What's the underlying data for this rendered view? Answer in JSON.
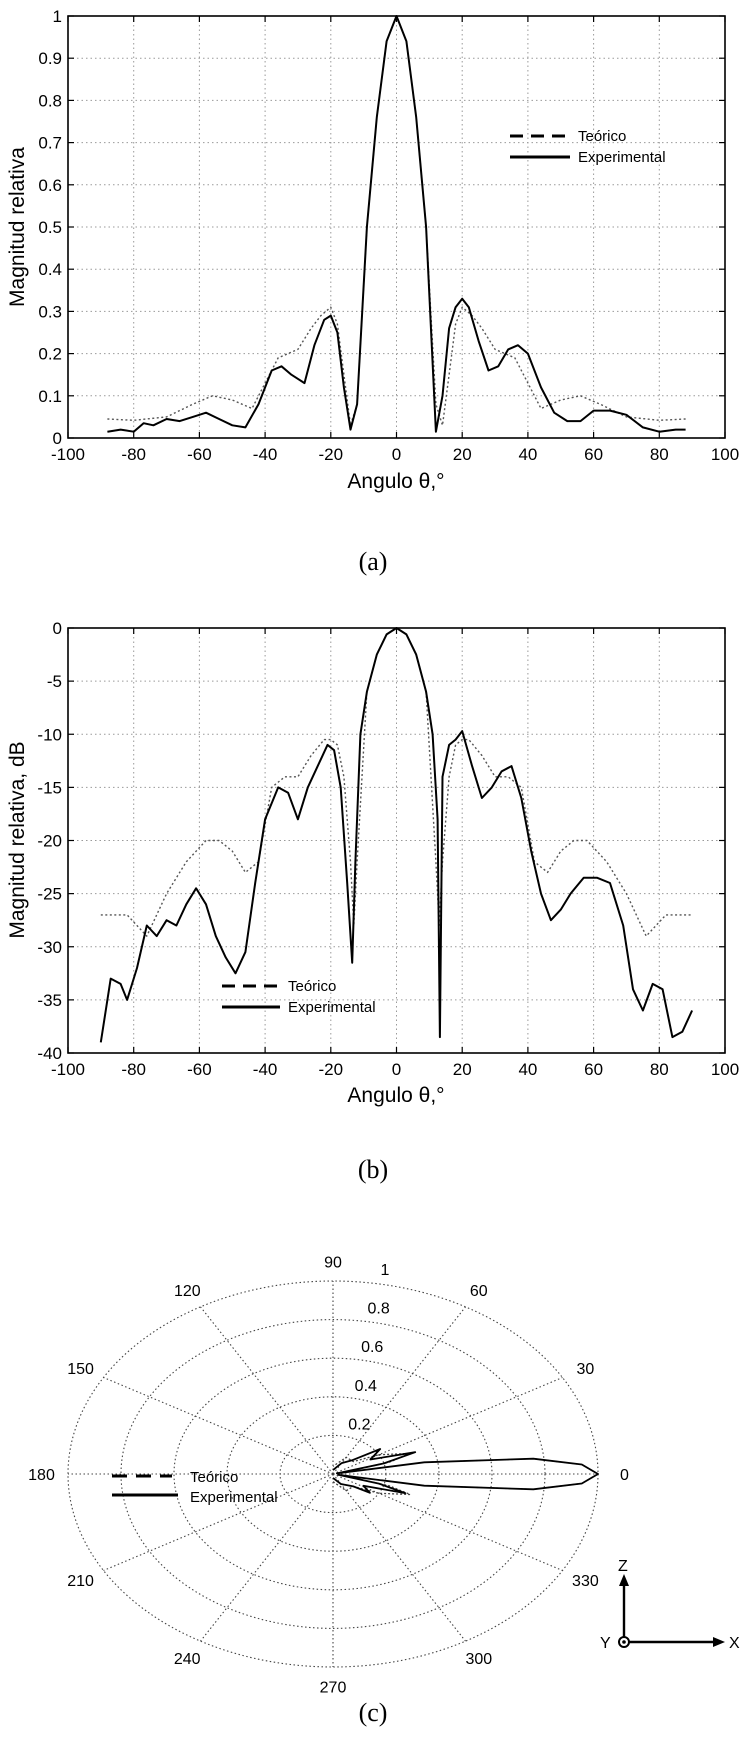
{
  "chart_data": [
    {
      "type": "line",
      "panel_label": "(a)",
      "xlabel": "Angulo θ,°",
      "ylabel": "Magnitud relativa",
      "xlim": [
        -100,
        100
      ],
      "ylim": [
        0,
        1
      ],
      "xticks": [
        "-100",
        "-80",
        "-60",
        "-40",
        "-20",
        "0",
        "20",
        "40",
        "60",
        "80",
        "100"
      ],
      "yticks": [
        "0",
        "0.1",
        "0.2",
        "0.3",
        "0.4",
        "0.5",
        "0.6",
        "0.7",
        "0.8",
        "0.9",
        "1"
      ],
      "grid": true,
      "legend": {
        "position": "top-right",
        "entries": [
          "Teórico",
          "Experimental"
        ]
      },
      "series": [
        {
          "name": "Teórico",
          "x": [
            -88,
            -80,
            -70,
            -62,
            -56,
            -50,
            -44,
            -40,
            -36,
            -33,
            -30,
            -26,
            -23,
            -20,
            -18,
            -16,
            -14,
            -12,
            -9,
            -6,
            -3,
            0,
            3,
            6,
            9,
            12,
            14,
            16,
            18,
            20,
            23,
            26,
            30,
            33,
            36,
            40,
            44,
            50,
            56,
            62,
            70,
            80,
            88
          ],
          "y": [
            0.045,
            0.042,
            0.05,
            0.08,
            0.1,
            0.09,
            0.07,
            0.13,
            0.19,
            0.2,
            0.21,
            0.26,
            0.29,
            0.31,
            0.27,
            0.15,
            0.03,
            0.08,
            0.5,
            0.76,
            0.94,
            1.0,
            0.94,
            0.76,
            0.5,
            0.08,
            0.03,
            0.15,
            0.27,
            0.31,
            0.29,
            0.26,
            0.21,
            0.2,
            0.19,
            0.13,
            0.07,
            0.09,
            0.1,
            0.08,
            0.05,
            0.042,
            0.045
          ]
        },
        {
          "name": "Experimental",
          "x": [
            -88,
            -84,
            -80,
            -77,
            -74,
            -70,
            -66,
            -62,
            -58,
            -54,
            -50,
            -46,
            -42,
            -38,
            -35,
            -32,
            -28,
            -25,
            -22,
            -20,
            -18,
            -16,
            -14,
            -12,
            -9,
            -6,
            -3,
            0,
            3,
            6,
            9,
            12,
            14,
            16,
            18,
            20,
            22,
            25,
            28,
            31,
            34,
            37,
            40,
            44,
            48,
            52,
            56,
            60,
            65,
            70,
            75,
            80,
            85,
            88
          ],
          "y": [
            0.015,
            0.02,
            0.015,
            0.035,
            0.03,
            0.045,
            0.04,
            0.05,
            0.06,
            0.045,
            0.03,
            0.025,
            0.08,
            0.16,
            0.17,
            0.15,
            0.13,
            0.22,
            0.28,
            0.29,
            0.25,
            0.12,
            0.02,
            0.08,
            0.5,
            0.76,
            0.94,
            1.0,
            0.94,
            0.76,
            0.5,
            0.015,
            0.1,
            0.26,
            0.31,
            0.33,
            0.31,
            0.23,
            0.16,
            0.17,
            0.21,
            0.22,
            0.2,
            0.12,
            0.06,
            0.04,
            0.04,
            0.065,
            0.065,
            0.055,
            0.025,
            0.015,
            0.02,
            0.02
          ]
        }
      ]
    },
    {
      "type": "line",
      "panel_label": "(b)",
      "xlabel": "Angulo θ,°",
      "ylabel": "Magnitud relativa, dB",
      "xlim": [
        -100,
        100
      ],
      "ylim": [
        -40,
        0
      ],
      "xticks": [
        "-100",
        "-80",
        "-60",
        "-40",
        "-20",
        "0",
        "20",
        "40",
        "60",
        "80",
        "100"
      ],
      "yticks": [
        "-40",
        "-35",
        "-30",
        "-25",
        "-20",
        "-15",
        "-10",
        "-5",
        "0"
      ],
      "grid": true,
      "legend": {
        "position": "bottom-left",
        "entries": [
          "Teórico",
          "Experimental"
        ]
      },
      "series": [
        {
          "name": "Teórico",
          "x": [
            -90,
            -82,
            -76,
            -70,
            -64,
            -58,
            -54,
            -50,
            -46,
            -42,
            -38,
            -34,
            -30,
            -26,
            -22,
            -20,
            -18,
            -16,
            -14,
            -13,
            -12,
            -9,
            -6,
            -3,
            0,
            3,
            6,
            9,
            12,
            13,
            14,
            16,
            18,
            20,
            22,
            26,
            30,
            34,
            38,
            42,
            46,
            50,
            54,
            58,
            64,
            70,
            76,
            82,
            90
          ],
          "y": [
            -27,
            -27,
            -29,
            -25,
            -22,
            -20,
            -20,
            -21,
            -23,
            -22,
            -15,
            -14,
            -14,
            -12,
            -10.5,
            -10.5,
            -11,
            -14,
            -22,
            -28,
            -22,
            -6,
            -2.5,
            -0.6,
            0,
            -0.6,
            -2.5,
            -6,
            -22,
            -28,
            -22,
            -14,
            -11,
            -10.5,
            -10.5,
            -12,
            -14,
            -14,
            -15,
            -22,
            -23,
            -21,
            -20,
            -20,
            -22,
            -25,
            -29,
            -27,
            -27
          ]
        },
        {
          "name": "Experimental",
          "x": [
            -90,
            -87,
            -84,
            -82,
            -79,
            -76,
            -73,
            -70,
            -67,
            -64,
            -61,
            -58,
            -55,
            -52,
            -49,
            -46,
            -43,
            -40,
            -36,
            -33,
            -30,
            -27,
            -24,
            -21,
            -19,
            -17,
            -15,
            -13.5,
            -12.5,
            -11,
            -9,
            -6,
            -3,
            0,
            3,
            6,
            9,
            11,
            12.5,
            13.2,
            14,
            16,
            18,
            20,
            23,
            26,
            29,
            32,
            35,
            38,
            41,
            44,
            47,
            50,
            53,
            57,
            61,
            65,
            69,
            72,
            75,
            78,
            81,
            84,
            87,
            90
          ],
          "y": [
            -39,
            -33,
            -33.5,
            -35,
            -32,
            -28,
            -29,
            -27.5,
            -28,
            -26,
            -24.5,
            -26,
            -29,
            -31,
            -32.5,
            -30.5,
            -24,
            -18,
            -15,
            -15.5,
            -18,
            -15,
            -13,
            -11,
            -11.5,
            -15,
            -24,
            -31.5,
            -22,
            -10,
            -6,
            -2.5,
            -0.6,
            0,
            -0.6,
            -2.5,
            -6,
            -10,
            -18,
            -38.5,
            -14,
            -11,
            -10.5,
            -9.7,
            -13,
            -16,
            -15,
            -13.5,
            -13,
            -16,
            -21,
            -25,
            -27.5,
            -26.5,
            -25,
            -23.5,
            -23.5,
            -24,
            -28,
            -34,
            -36,
            -33.5,
            -34,
            -38.5,
            -38,
            -36
          ]
        }
      ]
    },
    {
      "type": "polar",
      "panel_label": "(c)",
      "radial_ticks": [
        "0.2",
        "0.4",
        "0.6",
        "0.8",
        "1"
      ],
      "angle_ticks": [
        "0",
        "30",
        "60",
        "90",
        "120",
        "150",
        "180",
        "210",
        "240",
        "270",
        "300",
        "330"
      ],
      "legend": {
        "position": "left",
        "entries": [
          "Teórico",
          "Experimental"
        ]
      },
      "axis_labels": {
        "z": "Z",
        "x": "X",
        "y": "Y"
      },
      "series": [
        {
          "name": "Teórico",
          "theta": [
            -90,
            -60,
            -40,
            -30,
            -20,
            -16,
            -12.5,
            -10,
            -6,
            -3,
            0,
            3,
            6,
            10,
            12.5,
            16,
            20,
            30,
            40,
            60,
            90
          ],
          "r": [
            0.04,
            0.1,
            0.1,
            0.2,
            0.31,
            0.22,
            0.02,
            0.35,
            0.76,
            0.94,
            1.0,
            0.94,
            0.76,
            0.35,
            0.02,
            0.22,
            0.31,
            0.2,
            0.1,
            0.1,
            0.04
          ]
        },
        {
          "name": "Experimental",
          "theta": [
            -90,
            -60,
            -40,
            -35,
            -28,
            -20,
            -16,
            -12.5,
            -10,
            -6,
            -3,
            0,
            3,
            6,
            10,
            12.5,
            16,
            20,
            28,
            36,
            45,
            60,
            90
          ],
          "r": [
            0.02,
            0.06,
            0.1,
            0.17,
            0.13,
            0.29,
            0.18,
            0.02,
            0.35,
            0.76,
            0.94,
            1.0,
            0.94,
            0.76,
            0.35,
            0.015,
            0.2,
            0.33,
            0.16,
            0.22,
            0.1,
            0.065,
            0.02
          ]
        }
      ]
    }
  ]
}
